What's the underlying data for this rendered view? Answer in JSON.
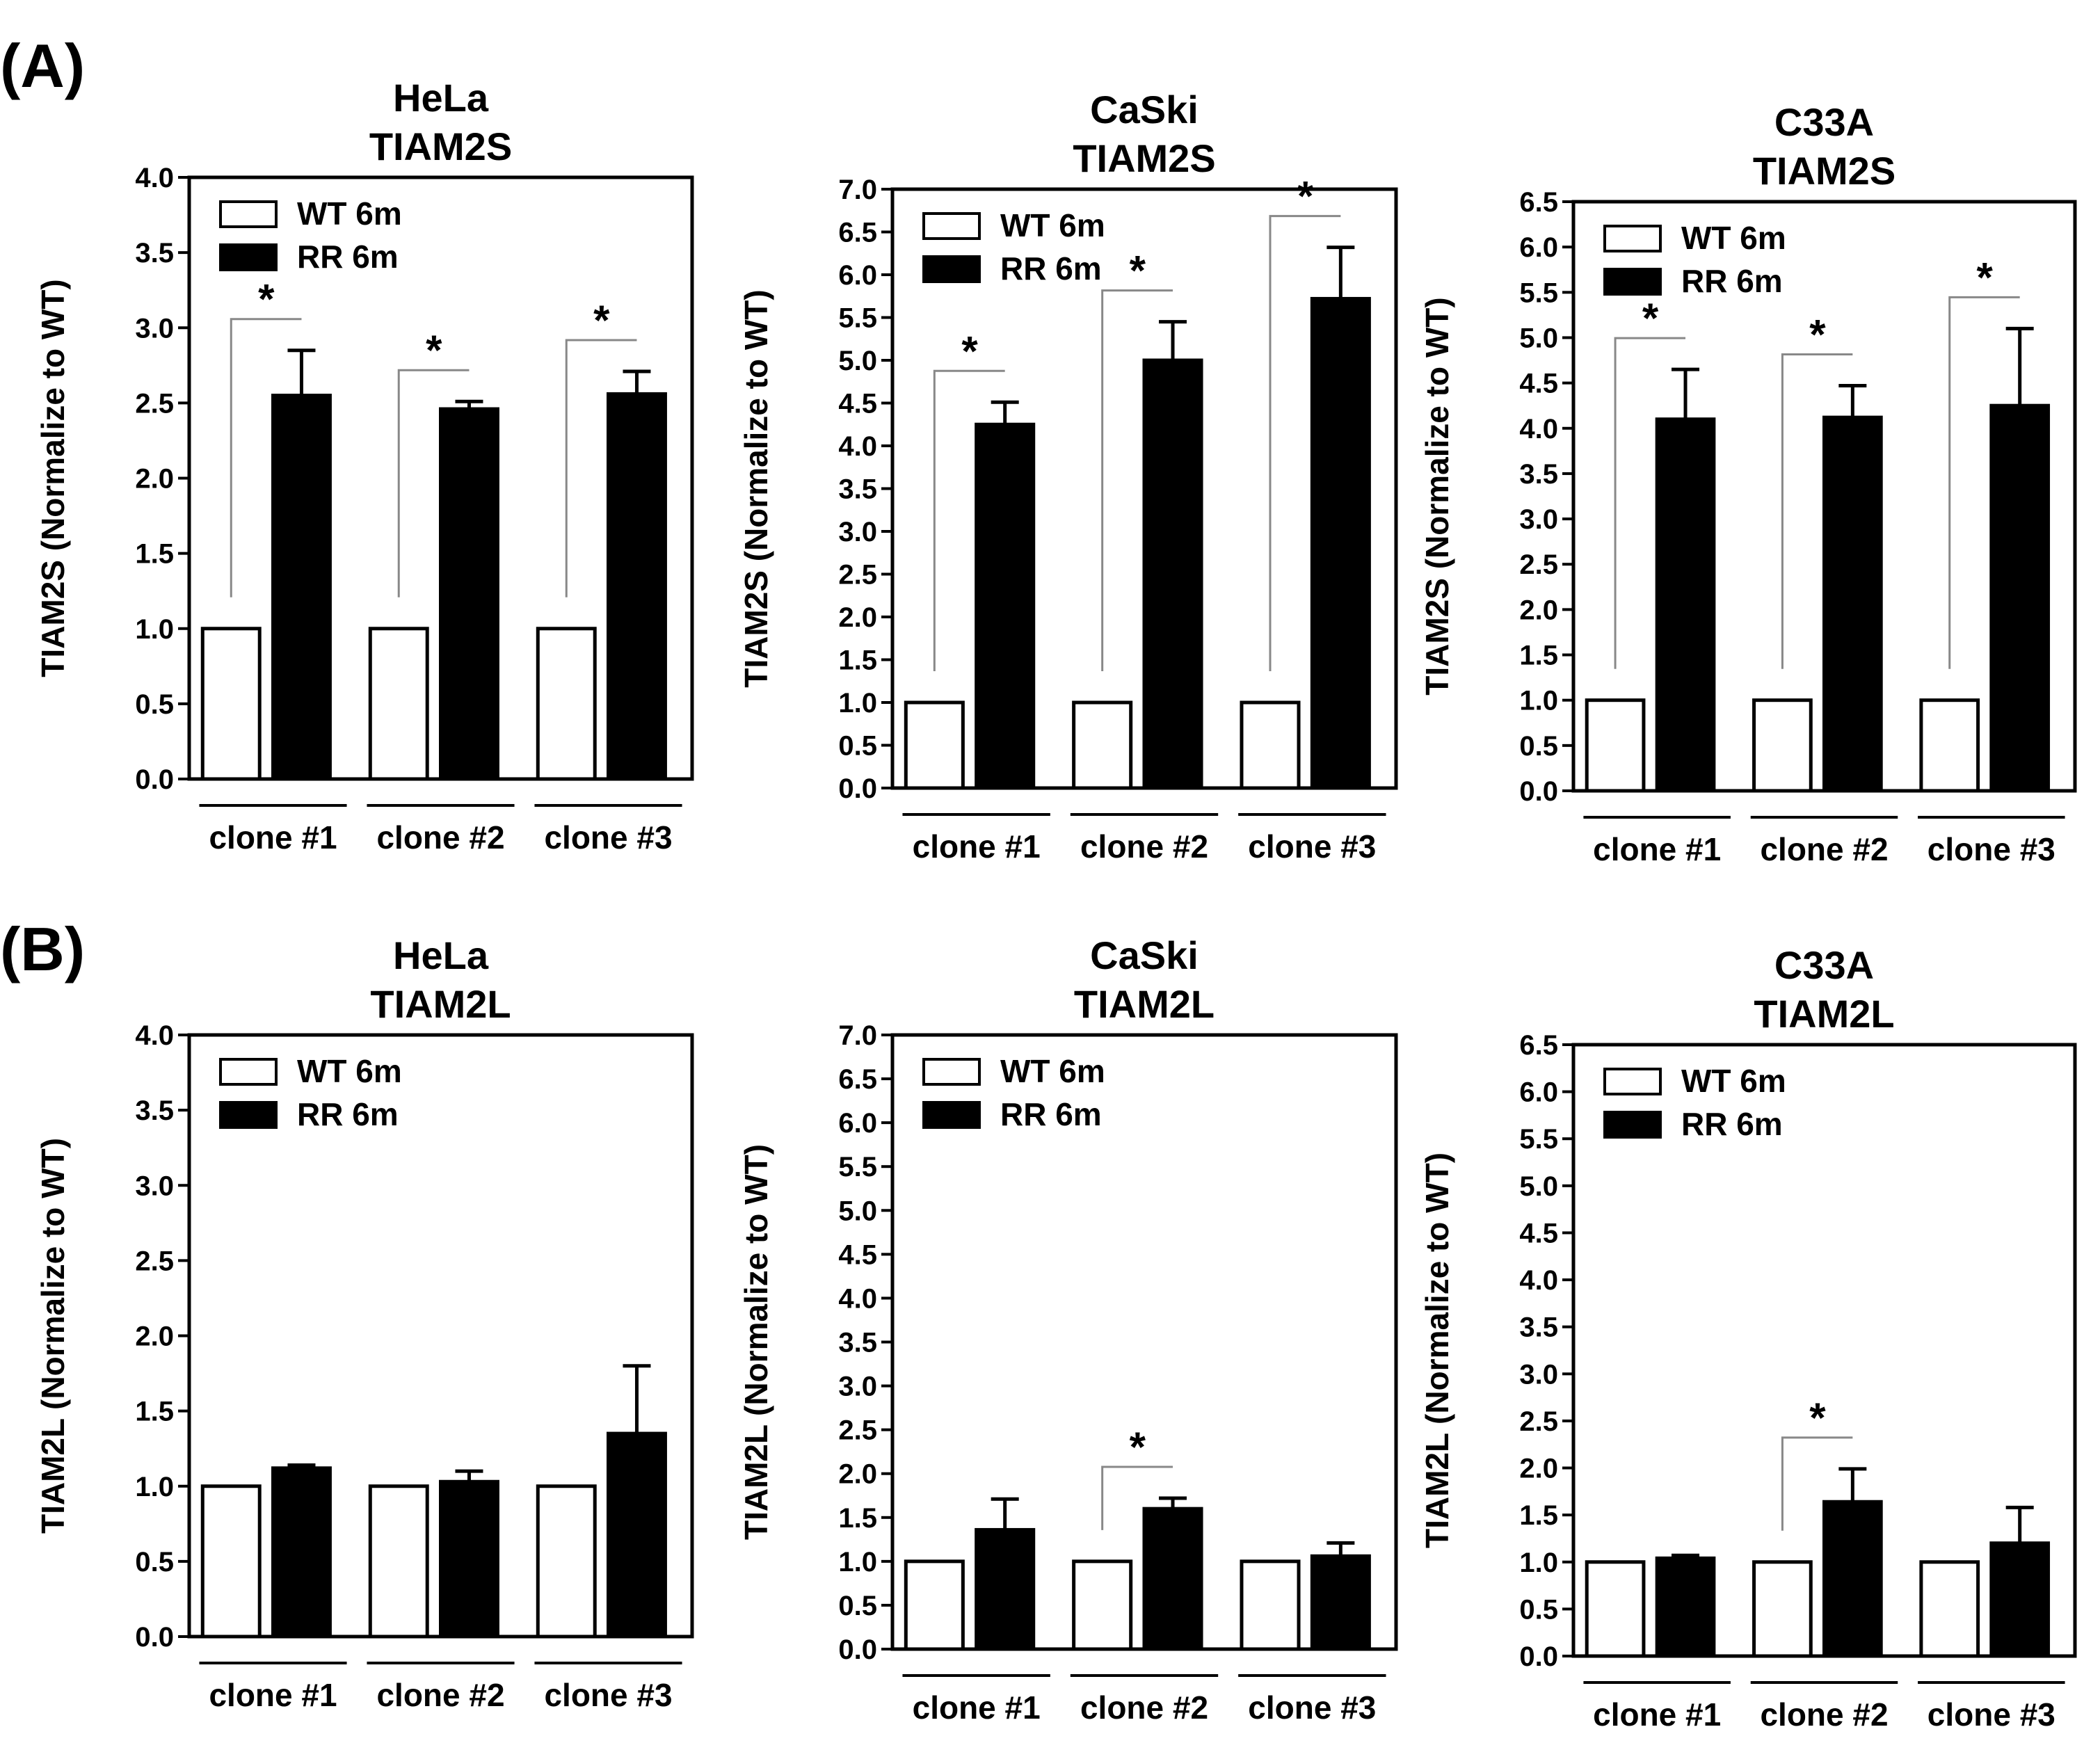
{
  "panel_labels": [
    "(A)",
    "(B)"
  ],
  "chart_data": [
    {
      "type": "bar",
      "panel": "(A)",
      "title": [
        "HeLa",
        "TIAM2S"
      ],
      "ylabel": "TIAM2S (Normalize to WT)",
      "ylim": [
        0,
        4.0
      ],
      "yticks": [
        "0.0",
        "0.5",
        "1.0",
        "1.5",
        "2.0",
        "2.5",
        "3.0",
        "3.5",
        "4.0"
      ],
      "categories": [
        "clone #1",
        "clone #2",
        "clone #3"
      ],
      "legend": [
        "WT 6m",
        "RR 6m"
      ],
      "series": [
        {
          "name": "WT 6m",
          "values": [
            1.0,
            1.0,
            1.0
          ],
          "errors": [
            0,
            0,
            0
          ]
        },
        {
          "name": "RR 6m",
          "values": [
            2.55,
            2.46,
            2.56
          ],
          "errors": [
            0.3,
            0.05,
            0.15
          ]
        }
      ],
      "significance": [
        "*",
        "*",
        "*"
      ]
    },
    {
      "type": "bar",
      "panel": "(A)",
      "title": [
        "CaSki",
        "TIAM2S"
      ],
      "ylabel": "TIAM2S (Normalize to WT)",
      "ylim": [
        0,
        7.0
      ],
      "yticks": [
        "0.0",
        "0.5",
        "1.0",
        "1.5",
        "2.0",
        "2.5",
        "3.0",
        "3.5",
        "4.0",
        "4.5",
        "5.0",
        "5.5",
        "6.0",
        "6.5",
        "7.0"
      ],
      "categories": [
        "clone #1",
        "clone #2",
        "clone #3"
      ],
      "legend": [
        "WT 6m",
        "RR 6m"
      ],
      "series": [
        {
          "name": "WT 6m",
          "values": [
            1.0,
            1.0,
            1.0
          ],
          "errors": [
            0,
            0,
            0
          ]
        },
        {
          "name": "RR 6m",
          "values": [
            4.25,
            5.0,
            5.72
          ],
          "errors": [
            0.26,
            0.45,
            0.6
          ]
        }
      ],
      "significance": [
        "*",
        "*",
        "*"
      ]
    },
    {
      "type": "bar",
      "panel": "(A)",
      "title": [
        "C33A",
        "TIAM2S"
      ],
      "ylabel": "TIAM2S (Normalize to WT)",
      "ylim": [
        0,
        6.5
      ],
      "yticks": [
        "0.0",
        "0.5",
        "1.0",
        "1.5",
        "2.0",
        "2.5",
        "3.0",
        "3.5",
        "4.0",
        "4.5",
        "5.0",
        "5.5",
        "6.0",
        "6.5"
      ],
      "categories": [
        "clone #1",
        "clone #2",
        "clone #3"
      ],
      "legend": [
        "WT 6m",
        "RR 6m"
      ],
      "series": [
        {
          "name": "WT 6m",
          "values": [
            1.0,
            1.0,
            1.0
          ],
          "errors": [
            0,
            0,
            0
          ]
        },
        {
          "name": "RR 6m",
          "values": [
            4.1,
            4.12,
            4.25
          ],
          "errors": [
            0.55,
            0.35,
            0.85
          ]
        }
      ],
      "significance": [
        "*",
        "*",
        "*"
      ]
    },
    {
      "type": "bar",
      "panel": "(B)",
      "title": [
        "HeLa",
        "TIAM2L"
      ],
      "ylabel": "TIAM2L (Normalize to WT)",
      "ylim": [
        0,
        4.0
      ],
      "yticks": [
        "0.0",
        "0.5",
        "1.0",
        "1.5",
        "2.0",
        "2.5",
        "3.0",
        "3.5",
        "4.0"
      ],
      "categories": [
        "clone #1",
        "clone #2",
        "clone #3"
      ],
      "legend": [
        "WT 6m",
        "RR 6m"
      ],
      "series": [
        {
          "name": "WT 6m",
          "values": [
            1.0,
            1.0,
            1.0
          ],
          "errors": [
            0,
            0,
            0
          ]
        },
        {
          "name": "RR 6m",
          "values": [
            1.12,
            1.03,
            1.35
          ],
          "errors": [
            0.02,
            0.07,
            0.45
          ]
        }
      ],
      "significance": [
        "",
        "",
        ""
      ]
    },
    {
      "type": "bar",
      "panel": "(B)",
      "title": [
        "CaSki",
        "TIAM2L"
      ],
      "ylabel": "TIAM2L (Normalize to WT)",
      "ylim": [
        0,
        7.0
      ],
      "yticks": [
        "0.0",
        "0.5",
        "1.0",
        "1.5",
        "2.0",
        "2.5",
        "3.0",
        "3.5",
        "4.0",
        "4.5",
        "5.0",
        "5.5",
        "6.0",
        "6.5",
        "7.0"
      ],
      "categories": [
        "clone #1",
        "clone #2",
        "clone #3"
      ],
      "legend": [
        "WT 6m",
        "RR 6m"
      ],
      "series": [
        {
          "name": "WT 6m",
          "values": [
            1.0,
            1.0,
            1.0
          ],
          "errors": [
            0,
            0,
            0
          ]
        },
        {
          "name": "RR 6m",
          "values": [
            1.36,
            1.6,
            1.06
          ],
          "errors": [
            0.35,
            0.12,
            0.15
          ]
        }
      ],
      "significance": [
        "",
        "*",
        ""
      ]
    },
    {
      "type": "bar",
      "panel": "(B)",
      "title": [
        "C33A",
        "TIAM2L"
      ],
      "ylabel": "TIAM2L (Normalize to WT)",
      "ylim": [
        0,
        6.5
      ],
      "yticks": [
        "0.0",
        "0.5",
        "1.0",
        "1.5",
        "2.0",
        "2.5",
        "3.0",
        "3.5",
        "4.0",
        "4.5",
        "5.0",
        "5.5",
        "6.0",
        "6.5"
      ],
      "categories": [
        "clone #1",
        "clone #2",
        "clone #3"
      ],
      "legend": [
        "WT 6m",
        "RR 6m"
      ],
      "series": [
        {
          "name": "WT 6m",
          "values": [
            1.0,
            1.0,
            1.0
          ],
          "errors": [
            0,
            0,
            0
          ]
        },
        {
          "name": "RR 6m",
          "values": [
            1.04,
            1.64,
            1.2
          ],
          "errors": [
            0.03,
            0.35,
            0.38
          ]
        }
      ],
      "significance": [
        "",
        "*",
        ""
      ]
    }
  ]
}
